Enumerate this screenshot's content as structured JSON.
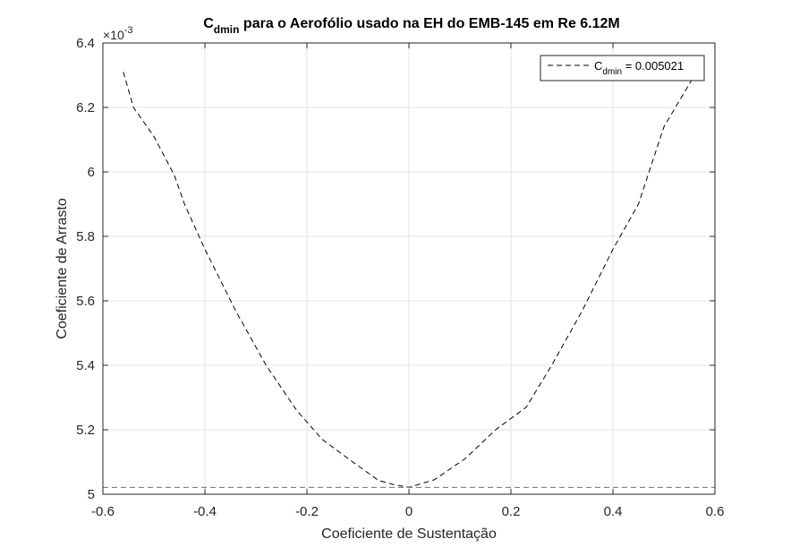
{
  "chart_data": {
    "type": "line",
    "title": {
      "main": "C",
      "sub": "dmin",
      "rest": " para o Aerofólio usado na EH do EMB-145 em Re 6.12M"
    },
    "xlabel": "Coeficiente de Sustentação",
    "ylabel": "Coeficiente de Arrasto",
    "xlim": [
      -0.6,
      0.6
    ],
    "ylim": [
      0.005,
      0.0064
    ],
    "xticks": [
      -0.6,
      -0.4,
      -0.2,
      0,
      0.2,
      0.4,
      0.6
    ],
    "xtick_labels": [
      "-0.6",
      "-0.4",
      "-0.2",
      "0",
      "0.2",
      "0.4",
      "0.6"
    ],
    "yticks": [
      0.005,
      0.0052,
      0.0054,
      0.0056,
      0.0058,
      0.006,
      0.0062,
      0.0064
    ],
    "ytick_labels": [
      "5",
      "5.2",
      "5.4",
      "5.6",
      "5.8",
      "6",
      "6.2",
      "6.4"
    ],
    "y_exponent": {
      "base": "×10",
      "power": "-3"
    },
    "grid": true,
    "legend_position": "top-right",
    "series": [
      {
        "line_style": "dashed",
        "color": "#000000",
        "x": [
          -0.56,
          -0.54,
          -0.5,
          -0.46,
          -0.44,
          -0.4,
          -0.34,
          -0.28,
          -0.22,
          -0.17,
          -0.11,
          -0.06,
          -0.03,
          0.0,
          0.05,
          0.11,
          0.17,
          0.23,
          0.28,
          0.34,
          0.4,
          0.45,
          0.5,
          0.56
        ],
        "y": [
          0.00631,
          0.0062,
          0.00611,
          0.00599,
          0.0059,
          0.00576,
          0.00557,
          0.0054,
          0.00526,
          0.00517,
          0.0051,
          0.005043,
          0.00503,
          0.005021,
          0.005045,
          0.00511,
          0.0052,
          0.00527,
          0.0054,
          0.00557,
          0.00576,
          0.0059,
          0.00614,
          0.0063
        ]
      },
      {
        "line_style": "dashed",
        "color": "#c0504d",
        "x": [
          -0.6,
          0.6
        ],
        "y": [
          0.005021,
          0.005021
        ]
      }
    ],
    "legend": {
      "label_main": "C",
      "label_sub": "dmin",
      "label_rest": " = 0.005021"
    }
  }
}
